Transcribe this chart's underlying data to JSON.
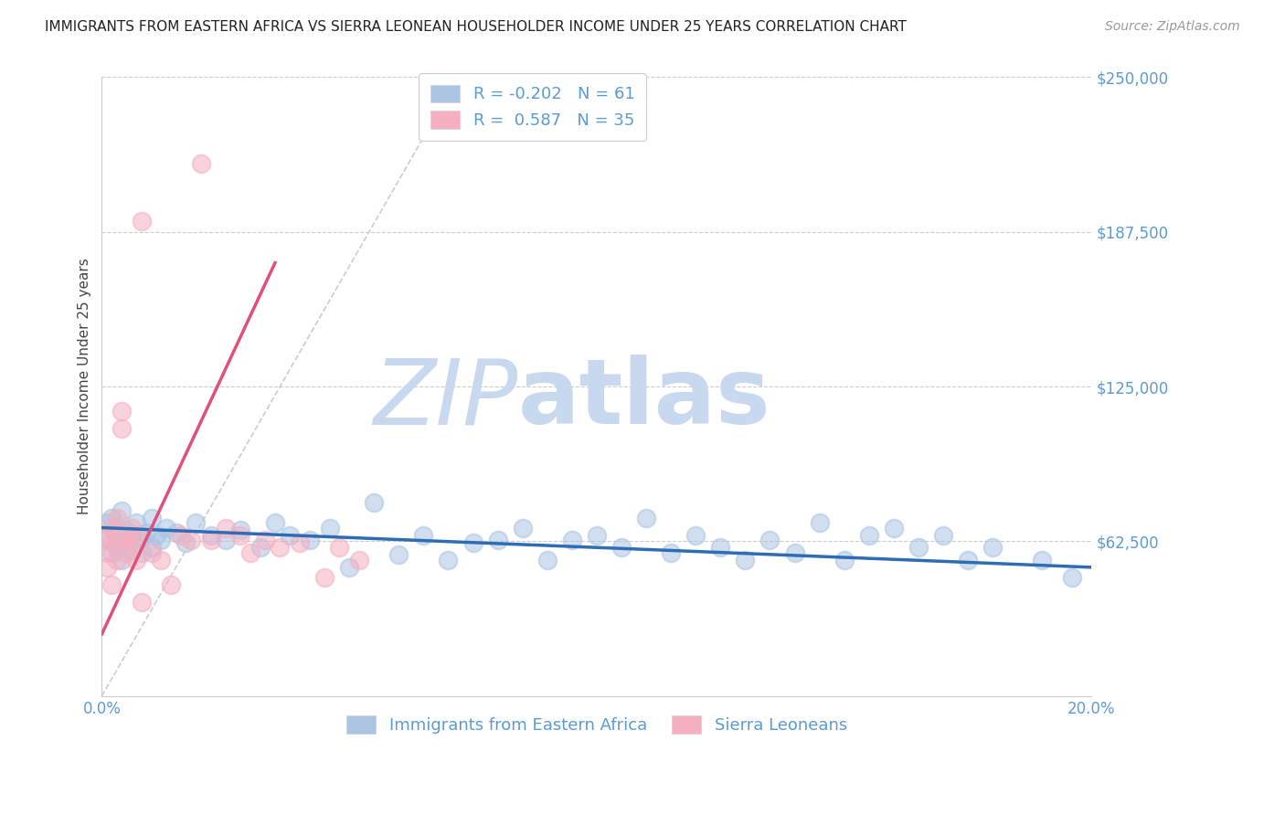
{
  "title": "IMMIGRANTS FROM EASTERN AFRICA VS SIERRA LEONEAN HOUSEHOLDER INCOME UNDER 25 YEARS CORRELATION CHART",
  "source": "Source: ZipAtlas.com",
  "ylabel": "Householder Income Under 25 years",
  "xlim": [
    0.0,
    0.2
  ],
  "ylim": [
    0,
    250000
  ],
  "yticks": [
    0,
    62500,
    125000,
    187500,
    250000
  ],
  "ytick_labels": [
    "",
    "$62,500",
    "$125,000",
    "$187,500",
    "$250,000"
  ],
  "xticks": [
    0.0,
    0.04,
    0.08,
    0.12,
    0.16,
    0.2
  ],
  "xtick_labels": [
    "0.0%",
    "",
    "",
    "",
    "",
    "20.0%"
  ],
  "watermark_zip": "ZIP",
  "watermark_atlas": "atlas",
  "legend_entries": [
    {
      "label": "R = -0.202   N = 61",
      "color": "#aac4e2"
    },
    {
      "label": "R =  0.587   N = 35",
      "color": "#f5afc0"
    }
  ],
  "legend_bottom": [
    {
      "label": "Immigrants from Eastern Africa",
      "color": "#aac4e2"
    },
    {
      "label": "Sierra Leoneans",
      "color": "#f5afc0"
    }
  ],
  "blue_scatter_x": [
    0.001,
    0.001,
    0.002,
    0.002,
    0.003,
    0.003,
    0.004,
    0.004,
    0.005,
    0.005,
    0.006,
    0.006,
    0.007,
    0.008,
    0.008,
    0.009,
    0.01,
    0.01,
    0.011,
    0.012,
    0.013,
    0.015,
    0.017,
    0.019,
    0.022,
    0.025,
    0.028,
    0.032,
    0.035,
    0.038,
    0.042,
    0.046,
    0.05,
    0.055,
    0.06,
    0.065,
    0.07,
    0.075,
    0.08,
    0.085,
    0.09,
    0.095,
    0.1,
    0.105,
    0.11,
    0.115,
    0.12,
    0.125,
    0.13,
    0.135,
    0.14,
    0.145,
    0.15,
    0.155,
    0.16,
    0.165,
    0.17,
    0.175,
    0.18,
    0.19,
    0.196
  ],
  "blue_scatter_y": [
    70000,
    63000,
    72000,
    58000,
    68000,
    60000,
    75000,
    55000,
    67000,
    62000,
    65000,
    59000,
    70000,
    64000,
    58000,
    66000,
    72000,
    60000,
    65000,
    63000,
    68000,
    66000,
    62000,
    70000,
    65000,
    63000,
    67000,
    60000,
    70000,
    65000,
    63000,
    68000,
    52000,
    78000,
    57000,
    65000,
    55000,
    62000,
    63000,
    68000,
    55000,
    63000,
    65000,
    60000,
    72000,
    58000,
    65000,
    60000,
    55000,
    63000,
    58000,
    70000,
    55000,
    65000,
    68000,
    60000,
    65000,
    55000,
    60000,
    55000,
    48000
  ],
  "pink_scatter_x": [
    0.001,
    0.001,
    0.001,
    0.002,
    0.002,
    0.002,
    0.003,
    0.003,
    0.003,
    0.004,
    0.004,
    0.005,
    0.005,
    0.006,
    0.006,
    0.007,
    0.007,
    0.008,
    0.008,
    0.01,
    0.012,
    0.014,
    0.016,
    0.018,
    0.02,
    0.022,
    0.025,
    0.028,
    0.03,
    0.033,
    0.036,
    0.04,
    0.045,
    0.048,
    0.052
  ],
  "pink_scatter_y": [
    65000,
    58000,
    52000,
    68000,
    62000,
    45000,
    72000,
    63000,
    55000,
    108000,
    115000,
    63000,
    58000,
    68000,
    62000,
    65000,
    55000,
    192000,
    38000,
    58000,
    55000,
    45000,
    65000,
    63000,
    215000,
    63000,
    68000,
    65000,
    58000,
    63000,
    60000,
    62000,
    48000,
    60000,
    55000
  ],
  "blue_line_x": [
    0.0,
    0.2
  ],
  "blue_line_y": [
    68000,
    52000
  ],
  "pink_line_x": [
    0.0,
    0.035
  ],
  "pink_line_y": [
    25000,
    175000
  ],
  "ref_line_x": [
    0.0,
    0.072
  ],
  "ref_line_y": [
    0,
    250000
  ],
  "title_color": "#222222",
  "axis_label_color": "#5b9bd5",
  "scatter_blue_color": "#aac4e2",
  "scatter_pink_color": "#f5afc0",
  "line_blue_color": "#2e6db4",
  "line_pink_color": "#e0507a",
  "watermark_color_zip": "#c8d8ee",
  "watermark_color_atlas": "#c8d8ee",
  "grid_color": "#cccccc",
  "background_color": "#ffffff"
}
